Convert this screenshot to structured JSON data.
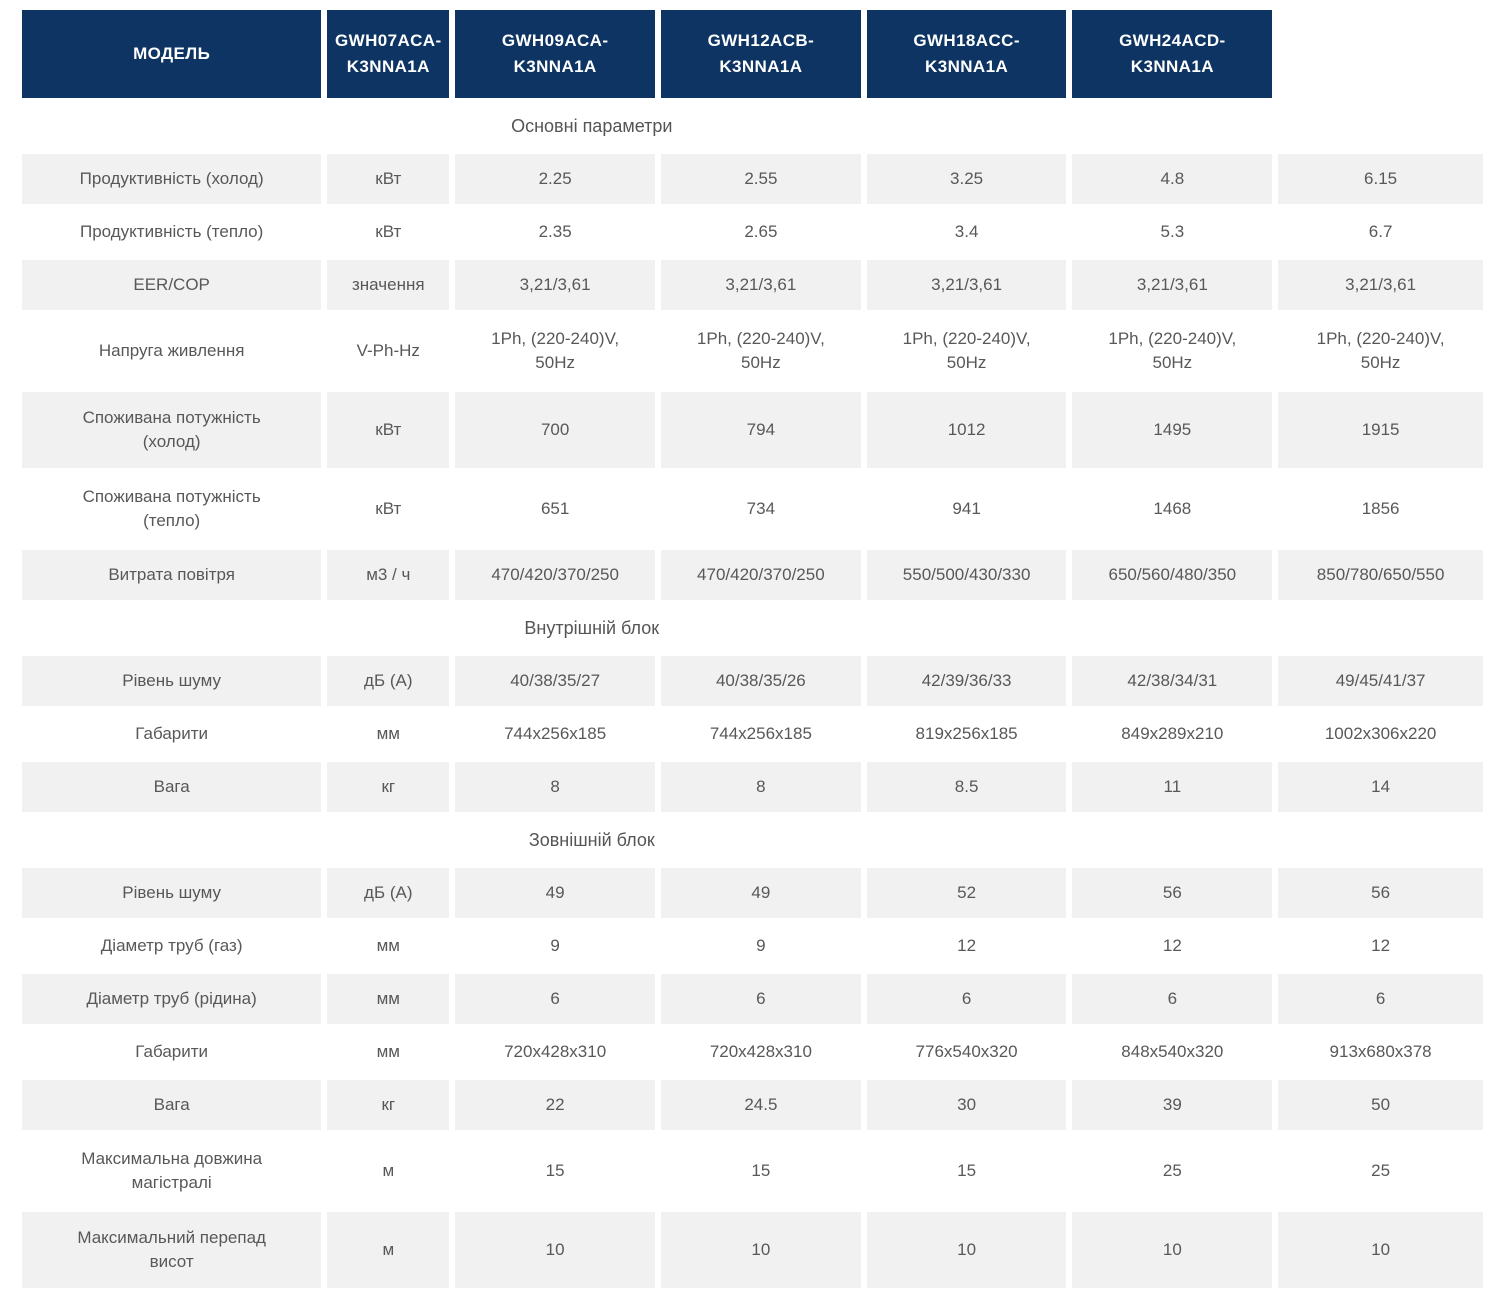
{
  "colors": {
    "header_bg": "#0d3462",
    "header_text": "#ffffff",
    "row_alt_bg": "#f1f1f1",
    "body_text": "#58585a"
  },
  "table": {
    "model_header": "МОДЕЛЬ",
    "models": [
      "GWH07ACA-\nK3NNA1A",
      "GWH09ACA-\nK3NNA1A",
      "GWH12ACB-\nK3NNA1A",
      "GWH18ACC-\nK3NNA1A",
      "GWH24ACD-\nK3NNA1A"
    ],
    "sections": [
      {
        "title": "Основні параметри",
        "rows": [
          {
            "param": "Продуктивність (холод)",
            "unit": "кВт",
            "tall": false,
            "values": [
              "2.25",
              "2.55",
              "3.25",
              "4.8",
              "6.15"
            ]
          },
          {
            "param": "Продуктивність (тепло)",
            "unit": "кВт",
            "tall": false,
            "values": [
              "2.35",
              "2.65",
              "3.4",
              "5.3",
              "6.7"
            ]
          },
          {
            "param": "EER/COP",
            "unit": "значення",
            "tall": false,
            "values": [
              "3,21/3,61",
              "3,21/3,61",
              "3,21/3,61",
              "3,21/3,61",
              "3,21/3,61"
            ]
          },
          {
            "param": "Напруга живлення",
            "unit": "V-Ph-Hz",
            "tall": true,
            "values": [
              "1Ph, (220-240)V,\n50Hz",
              "1Ph, (220-240)V,\n50Hz",
              "1Ph, (220-240)V,\n50Hz",
              "1Ph, (220-240)V,\n50Hz",
              "1Ph, (220-240)V,\n50Hz"
            ]
          },
          {
            "param": "Споживана потужність\n(холод)",
            "unit": "кВт",
            "tall": true,
            "values": [
              "700",
              "794",
              "1012",
              "1495",
              "1915"
            ]
          },
          {
            "param": "Споживана потужність\n(тепло)",
            "unit": "кВт",
            "tall": true,
            "values": [
              "651",
              "734",
              "941",
              "1468",
              "1856"
            ]
          },
          {
            "param": "Витрата повітря",
            "unit": "м3 / ч",
            "tall": false,
            "values": [
              "470/420/370/250",
              "470/420/370/250",
              "550/500/430/330",
              "650/560/480/350",
              "850/780/650/550"
            ]
          }
        ]
      },
      {
        "title": "Внутрішній блок",
        "rows": [
          {
            "param": "Рівень шуму",
            "unit": "дБ (А)",
            "tall": false,
            "values": [
              "40/38/35/27",
              "40/38/35/26",
              "42/39/36/33",
              "42/38/34/31",
              "49/45/41/37"
            ]
          },
          {
            "param": "Габарити",
            "unit": "мм",
            "tall": false,
            "values": [
              "744x256x185",
              "744x256x185",
              "819x256x185",
              "849x289x210",
              "1002x306x220"
            ]
          },
          {
            "param": "Вага",
            "unit": "кг",
            "tall": false,
            "values": [
              "8",
              "8",
              "8.5",
              "11",
              "14"
            ]
          }
        ]
      },
      {
        "title": "Зовнішній блок",
        "rows": [
          {
            "param": "Рівень шуму",
            "unit": "дБ (А)",
            "tall": false,
            "values": [
              "49",
              "49",
              "52",
              "56",
              "56"
            ]
          },
          {
            "param": "Діаметр труб (газ)",
            "unit": "мм",
            "tall": false,
            "values": [
              "9",
              "9",
              "12",
              "12",
              "12"
            ]
          },
          {
            "param": "Діаметр труб (рідина)",
            "unit": "мм",
            "tall": false,
            "values": [
              "6",
              "6",
              "6",
              "6",
              "6"
            ]
          },
          {
            "param": "Габарити",
            "unit": "мм",
            "tall": false,
            "values": [
              "720x428x310",
              "720x428x310",
              "776x540x320",
              "848x540x320",
              "913x680x378"
            ]
          },
          {
            "param": "Вага",
            "unit": "кг",
            "tall": false,
            "values": [
              "22",
              "24.5",
              "30",
              "39",
              "50"
            ]
          },
          {
            "param": "Максимальна довжина\nмагістралі",
            "unit": "м",
            "tall": true,
            "values": [
              "15",
              "15",
              "15",
              "25",
              "25"
            ]
          },
          {
            "param": "Максимальний перепад\nвисот",
            "unit": "м",
            "tall": true,
            "values": [
              "10",
              "10",
              "10",
              "10",
              "10"
            ]
          }
        ]
      }
    ]
  }
}
